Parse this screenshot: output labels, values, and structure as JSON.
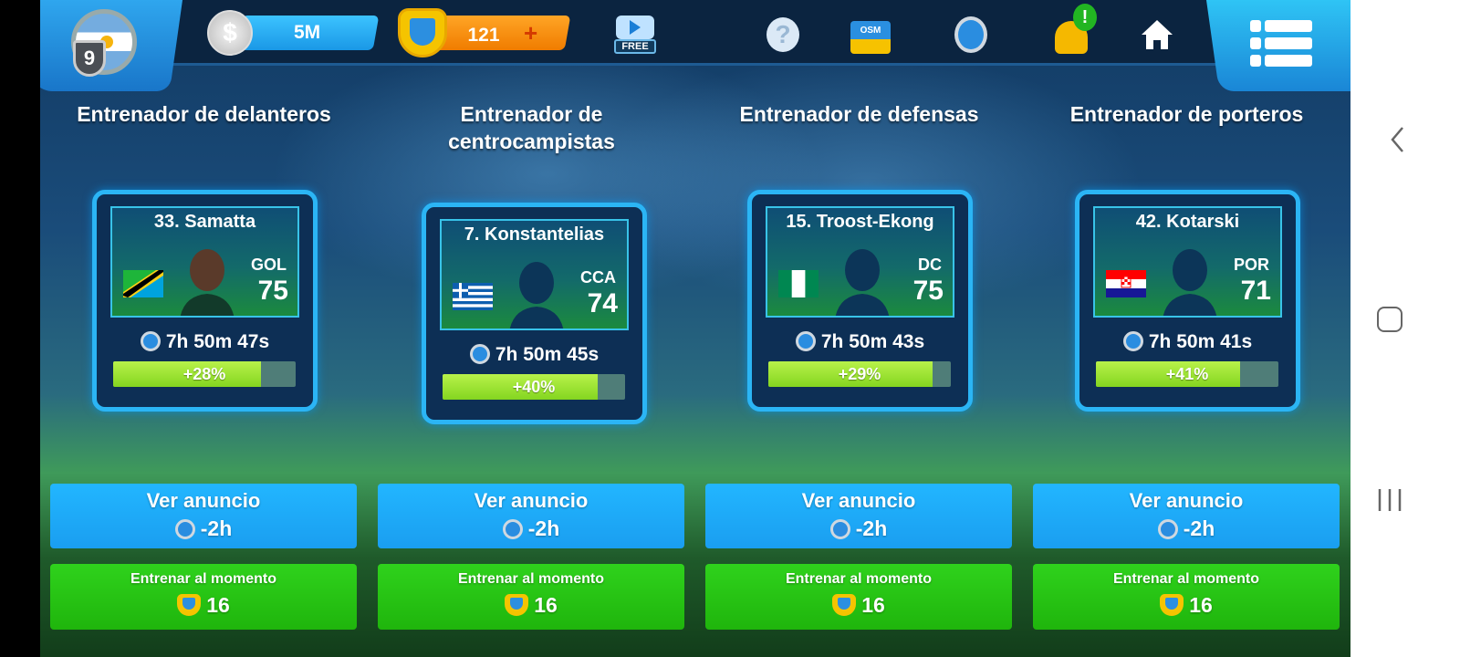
{
  "topbar": {
    "level": "9",
    "coins": "5M",
    "tokens": "121",
    "tokens_plus": "+",
    "free_video_label": "FREE",
    "icons": [
      "help-icon",
      "shop-bag-icon",
      "stopwatch-icon",
      "notification-bell-icon",
      "home-icon",
      "menu-icon"
    ],
    "bell_badge": "!",
    "shop_label": "OSM"
  },
  "columns": [
    {
      "title": "Entrenador de delanteros",
      "player": "33. Samatta",
      "flag": "tanzania",
      "position": "GOL",
      "rating": "75",
      "timer": "7h 50m 47s",
      "boost": "+28%",
      "progress": 0.81,
      "ad_label": "Ver anuncio",
      "ad_reward": "-2h",
      "train_label": "Entrenar al momento",
      "train_cost": "16"
    },
    {
      "title": "Entrenador de centrocampistas",
      "player": "7. Konstantelias",
      "flag": "greece",
      "position": "CCA",
      "rating": "74",
      "timer": "7h 50m 45s",
      "boost": "+40%",
      "progress": 0.85,
      "ad_label": "Ver anuncio",
      "ad_reward": "-2h",
      "train_label": "Entrenar al momento",
      "train_cost": "16"
    },
    {
      "title": "Entrenador de defensas",
      "player": "15. Troost-Ekong",
      "flag": "nigeria",
      "position": "DC",
      "rating": "75",
      "timer": "7h 50m 43s",
      "boost": "+29%",
      "progress": 0.9,
      "ad_label": "Ver anuncio",
      "ad_reward": "-2h",
      "train_label": "Entrenar al momento",
      "train_cost": "16"
    },
    {
      "title": "Entrenador de porteros",
      "player": "42. Kotarski",
      "flag": "croatia",
      "position": "POR",
      "rating": "71",
      "timer": "7h 50m 41s",
      "boost": "+41%",
      "progress": 0.79,
      "ad_label": "Ver anuncio",
      "ad_reward": "-2h",
      "train_label": "Entrenar al momento",
      "train_cost": "16"
    }
  ],
  "colors": {
    "ad_button": "#1fa9f8",
    "train_button": "#26c414",
    "progress_fill": "#a6e83a",
    "card_border": "#2bb5f5"
  },
  "navbar": {
    "icons": [
      "back-icon",
      "home-circle-icon",
      "recent-apps-icon"
    ]
  }
}
